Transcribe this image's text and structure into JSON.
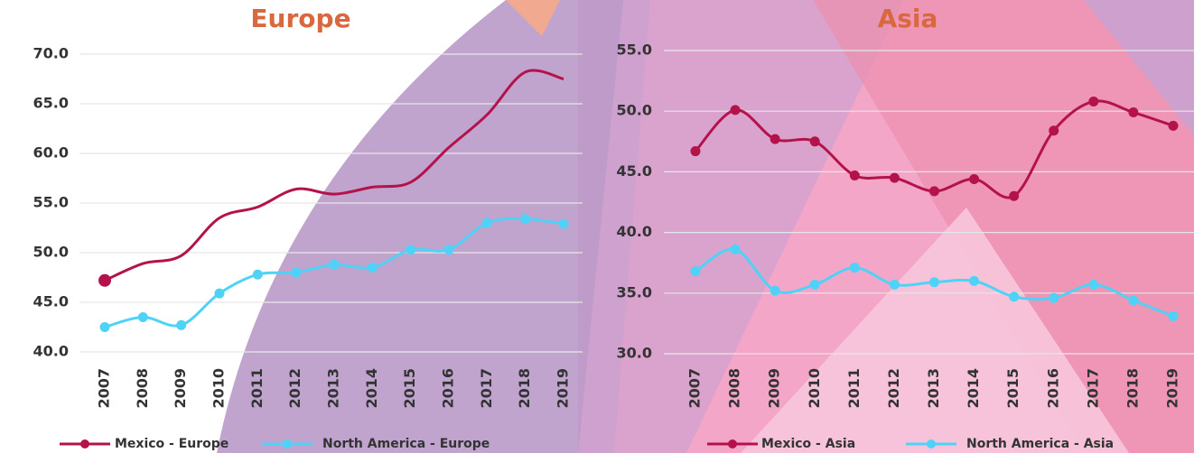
{
  "chart_data": [
    {
      "type": "line",
      "title": "Europe",
      "categories": [
        "2007",
        "2008",
        "2009",
        "2010",
        "2011",
        "2012",
        "2013",
        "2014",
        "2015",
        "2016",
        "2017",
        "2018",
        "2019"
      ],
      "ylim": [
        40,
        70
      ],
      "yticks": [
        {
          "value": 40,
          "label": "40.0"
        },
        {
          "value": 45,
          "label": "45.0"
        },
        {
          "value": 50,
          "label": "50.0"
        },
        {
          "value": 55,
          "label": "55.0"
        },
        {
          "value": 60,
          "label": "60.0"
        },
        {
          "value": 65,
          "label": "65.0"
        },
        {
          "value": 70,
          "label": "70.0"
        }
      ],
      "grid": true,
      "smooth": true,
      "legend": "bottom",
      "series": [
        {
          "name": "Mexico - Europe",
          "color": "#b3124b",
          "markers": "first",
          "values": [
            47.2,
            48.9,
            49.7,
            53.5,
            54.6,
            56.4,
            55.9,
            56.6,
            57.1,
            60.6,
            63.9,
            68.2,
            67.5
          ]
        },
        {
          "name": "North America - Europe",
          "color": "#4fd2f7",
          "markers": "all",
          "values": [
            42.5,
            43.5,
            42.7,
            45.9,
            47.8,
            48.0,
            48.8,
            48.5,
            50.3,
            50.3,
            53.0,
            53.4,
            52.9
          ]
        }
      ]
    },
    {
      "type": "line",
      "title": "Asia",
      "categories": [
        "2007",
        "2008",
        "2009",
        "2010",
        "2011",
        "2012",
        "2013",
        "2014",
        "2015",
        "2016",
        "2017",
        "2018",
        "2019"
      ],
      "ylim": [
        30,
        55
      ],
      "yticks": [
        {
          "value": 30,
          "label": "30.0"
        },
        {
          "value": 35,
          "label": "35.0"
        },
        {
          "value": 40,
          "label": "40.0"
        },
        {
          "value": 45,
          "label": "45.0"
        },
        {
          "value": 50,
          "label": "50.0"
        },
        {
          "value": 55,
          "label": "55.0"
        }
      ],
      "grid": true,
      "smooth": true,
      "legend": "bottom",
      "series": [
        {
          "name": "Mexico - Asia",
          "color": "#b3124b",
          "markers": "all",
          "values": [
            46.7,
            50.1,
            47.7,
            47.5,
            44.7,
            44.5,
            43.4,
            44.4,
            43.0,
            48.4,
            50.8,
            49.9,
            48.8
          ]
        },
        {
          "name": "North America - Asia",
          "color": "#4fd2f7",
          "markers": "all",
          "values": [
            36.8,
            38.6,
            35.2,
            35.7,
            37.1,
            35.7,
            35.9,
            36.0,
            34.7,
            34.6,
            35.7,
            34.4,
            33.1
          ]
        }
      ]
    }
  ]
}
